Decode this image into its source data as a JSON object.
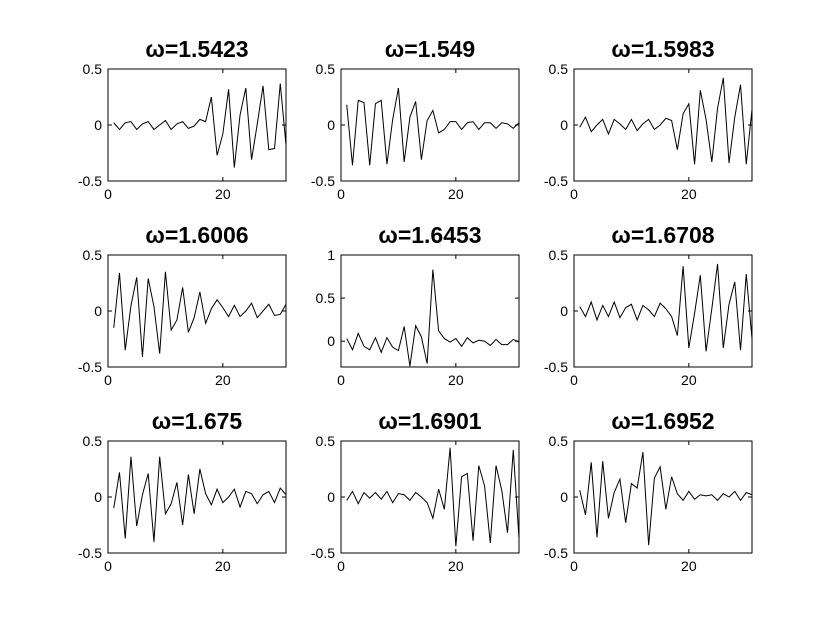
{
  "figure": {
    "background": "#ffffff",
    "line_color": "#000000"
  },
  "chart_data": [
    {
      "type": "line",
      "title": "ω=1.5423",
      "xlim": [
        0,
        31
      ],
      "ylim": [
        -0.5,
        0.5
      ],
      "xticks": [
        0,
        20
      ],
      "xtick_labels": [
        "0",
        "20"
      ],
      "yticks": [
        -0.5,
        0,
        0.5
      ],
      "ytick_labels": [
        "-0.5",
        "0",
        "0.5"
      ],
      "x": [
        1,
        2,
        3,
        4,
        5,
        6,
        7,
        8,
        9,
        10,
        11,
        12,
        13,
        14,
        15,
        16,
        17,
        18,
        19,
        20,
        21,
        22,
        23,
        24,
        25,
        26,
        27,
        28,
        29,
        30,
        31
      ],
      "series": [
        {
          "values": [
            0.02,
            -0.04,
            0.02,
            0.03,
            -0.04,
            0.01,
            0.03,
            -0.04,
            0.0,
            0.04,
            -0.04,
            0.01,
            0.03,
            -0.03,
            -0.01,
            0.05,
            0.03,
            0.25,
            -0.27,
            -0.08,
            0.32,
            -0.38,
            0.09,
            0.33,
            -0.31,
            0.01,
            0.35,
            -0.22,
            -0.21,
            0.37,
            -0.18
          ]
        }
      ]
    },
    {
      "type": "line",
      "title": "ω=1.549",
      "xlim": [
        0,
        31
      ],
      "ylim": [
        -0.5,
        0.5
      ],
      "xticks": [
        0,
        20
      ],
      "xtick_labels": [
        "0",
        "20"
      ],
      "yticks": [
        -0.5,
        0,
        0.5
      ],
      "ytick_labels": [
        "-0.5",
        "0",
        "0.5"
      ],
      "x": [
        1,
        2,
        3,
        4,
        5,
        6,
        7,
        8,
        9,
        10,
        11,
        12,
        13,
        14,
        15,
        16,
        17,
        18,
        19,
        20,
        21,
        22,
        23,
        24,
        25,
        26,
        27,
        28,
        29,
        30,
        31
      ],
      "series": [
        {
          "values": [
            0.18,
            -0.36,
            0.22,
            0.2,
            -0.36,
            0.19,
            0.22,
            -0.35,
            0.05,
            0.33,
            -0.33,
            0.07,
            0.21,
            -0.31,
            0.04,
            0.13,
            -0.07,
            -0.04,
            0.03,
            0.03,
            -0.04,
            0.02,
            0.03,
            -0.04,
            0.02,
            0.02,
            -0.03,
            0.02,
            0.01,
            -0.03,
            0.02
          ]
        }
      ]
    },
    {
      "type": "line",
      "title": "ω=1.5983",
      "xlim": [
        0,
        31
      ],
      "ylim": [
        -0.5,
        0.5
      ],
      "xticks": [
        0,
        20
      ],
      "xtick_labels": [
        "0",
        "20"
      ],
      "yticks": [
        -0.5,
        0,
        0.5
      ],
      "ytick_labels": [
        "-0.5",
        "0",
        "0.5"
      ],
      "x": [
        1,
        2,
        3,
        4,
        5,
        6,
        7,
        8,
        9,
        10,
        11,
        12,
        13,
        14,
        15,
        16,
        17,
        18,
        19,
        20,
        21,
        22,
        23,
        24,
        25,
        26,
        27,
        28,
        29,
        30,
        31
      ],
      "series": [
        {
          "values": [
            -0.02,
            0.07,
            -0.06,
            0.0,
            0.05,
            -0.08,
            0.05,
            0.01,
            -0.04,
            0.05,
            -0.05,
            0.01,
            0.05,
            -0.04,
            0.0,
            0.06,
            0.04,
            -0.22,
            0.1,
            0.19,
            -0.35,
            0.31,
            0.05,
            -0.33,
            0.15,
            0.42,
            -0.34,
            0.07,
            0.36,
            -0.35,
            0.14
          ]
        }
      ]
    },
    {
      "type": "line",
      "title": "ω=1.6006",
      "xlim": [
        0,
        31
      ],
      "ylim": [
        -0.5,
        0.5
      ],
      "xticks": [
        0,
        20
      ],
      "xtick_labels": [
        "0",
        "20"
      ],
      "yticks": [
        -0.5,
        0,
        0.5
      ],
      "ytick_labels": [
        "-0.5",
        "0",
        "0.5"
      ],
      "x": [
        1,
        2,
        3,
        4,
        5,
        6,
        7,
        8,
        9,
        10,
        11,
        12,
        13,
        14,
        15,
        16,
        17,
        18,
        19,
        20,
        21,
        22,
        23,
        24,
        25,
        26,
        27,
        28,
        29,
        30,
        31
      ],
      "series": [
        {
          "values": [
            -0.15,
            0.34,
            -0.35,
            0.05,
            0.3,
            -0.41,
            0.29,
            0.04,
            -0.38,
            0.35,
            -0.17,
            -0.08,
            0.21,
            -0.19,
            -0.06,
            0.17,
            -0.11,
            0.02,
            0.1,
            0.03,
            -0.05,
            0.05,
            -0.05,
            0.0,
            0.07,
            -0.06,
            0.0,
            0.06,
            -0.04,
            -0.03,
            0.06
          ]
        }
      ]
    },
    {
      "type": "line",
      "title": "ω=1.6453",
      "xlim": [
        0,
        31
      ],
      "ylim": [
        -0.3,
        1
      ],
      "xticks": [
        0,
        20
      ],
      "xtick_labels": [
        "0",
        "20"
      ],
      "yticks": [
        0,
        0.5,
        1
      ],
      "ytick_labels": [
        "0",
        "0.5",
        "1"
      ],
      "x": [
        1,
        2,
        3,
        4,
        5,
        6,
        7,
        8,
        9,
        10,
        11,
        12,
        13,
        14,
        15,
        16,
        17,
        18,
        19,
        20,
        21,
        22,
        23,
        24,
        25,
        26,
        27,
        28,
        29,
        30,
        31
      ],
      "series": [
        {
          "values": [
            0.03,
            -0.1,
            0.09,
            -0.06,
            -0.1,
            0.04,
            -0.13,
            0.04,
            -0.07,
            -0.11,
            0.17,
            -0.29,
            0.18,
            0.05,
            -0.26,
            0.83,
            0.12,
            0.03,
            -0.01,
            0.03,
            -0.06,
            0.04,
            -0.02,
            0.01,
            0.0,
            -0.05,
            0.02,
            -0.04,
            -0.04,
            0.02,
            -0.01
          ]
        }
      ]
    },
    {
      "type": "line",
      "title": "ω=1.6708",
      "xlim": [
        0,
        31
      ],
      "ylim": [
        -0.5,
        0.5
      ],
      "xticks": [
        0,
        20
      ],
      "xtick_labels": [
        "0",
        "20"
      ],
      "yticks": [
        -0.5,
        0,
        0.5
      ],
      "ytick_labels": [
        "-0.5",
        "0",
        "0.5"
      ],
      "x": [
        1,
        2,
        3,
        4,
        5,
        6,
        7,
        8,
        9,
        10,
        11,
        12,
        13,
        14,
        15,
        16,
        17,
        18,
        19,
        20,
        21,
        22,
        23,
        24,
        25,
        26,
        27,
        28,
        29,
        30,
        31
      ],
      "series": [
        {
          "values": [
            0.04,
            -0.05,
            0.08,
            -0.08,
            0.05,
            -0.05,
            0.08,
            -0.06,
            0.03,
            0.06,
            -0.08,
            0.05,
            0.01,
            -0.05,
            0.07,
            0.02,
            -0.05,
            -0.22,
            0.4,
            -0.33,
            -0.02,
            0.32,
            -0.36,
            0.02,
            0.42,
            -0.33,
            0.06,
            0.26,
            -0.35,
            0.33,
            -0.25
          ]
        }
      ]
    },
    {
      "type": "line",
      "title": "ω=1.675",
      "xlim": [
        0,
        31
      ],
      "ylim": [
        -0.5,
        0.5
      ],
      "xticks": [
        0,
        20
      ],
      "xtick_labels": [
        "0",
        "20"
      ],
      "yticks": [
        -0.5,
        0,
        0.5
      ],
      "ytick_labels": [
        "-0.5",
        "0",
        "0.5"
      ],
      "x": [
        1,
        2,
        3,
        4,
        5,
        6,
        7,
        8,
        9,
        10,
        11,
        12,
        13,
        14,
        15,
        16,
        17,
        18,
        19,
        20,
        21,
        22,
        23,
        24,
        25,
        26,
        27,
        28,
        29,
        30,
        31
      ],
      "series": [
        {
          "values": [
            -0.1,
            0.22,
            -0.37,
            0.36,
            -0.26,
            0.02,
            0.21,
            -0.4,
            0.36,
            -0.15,
            -0.06,
            0.13,
            -0.25,
            0.2,
            -0.15,
            0.25,
            0.03,
            -0.07,
            0.07,
            -0.05,
            0.0,
            0.07,
            -0.09,
            0.05,
            0.03,
            -0.06,
            0.02,
            0.05,
            -0.05,
            0.08,
            0.02
          ]
        }
      ]
    },
    {
      "type": "line",
      "title": "ω=1.6901",
      "xlim": [
        0,
        31
      ],
      "ylim": [
        -0.5,
        0.5
      ],
      "xticks": [
        0,
        20
      ],
      "xtick_labels": [
        "0",
        "20"
      ],
      "yticks": [
        -0.5,
        0,
        0.5
      ],
      "ytick_labels": [
        "-0.5",
        "0",
        "0.5"
      ],
      "x": [
        1,
        2,
        3,
        4,
        5,
        6,
        7,
        8,
        9,
        10,
        11,
        12,
        13,
        14,
        15,
        16,
        17,
        18,
        19,
        20,
        21,
        22,
        23,
        24,
        25,
        26,
        27,
        28,
        29,
        30,
        31
      ],
      "series": [
        {
          "values": [
            -0.03,
            0.05,
            -0.06,
            0.04,
            -0.01,
            0.04,
            -0.02,
            0.05,
            -0.05,
            0.03,
            0.02,
            -0.03,
            0.04,
            0.0,
            -0.05,
            -0.19,
            0.07,
            -0.11,
            0.44,
            -0.44,
            0.18,
            0.21,
            -0.39,
            0.28,
            0.1,
            -0.41,
            0.28,
            0.06,
            -0.32,
            0.42,
            -0.37
          ]
        }
      ]
    },
    {
      "type": "line",
      "title": "ω=1.6952",
      "xlim": [
        0,
        31
      ],
      "ylim": [
        -0.5,
        0.5
      ],
      "xticks": [
        0,
        20
      ],
      "xtick_labels": [
        "0",
        "20"
      ],
      "yticks": [
        -0.5,
        0,
        0.5
      ],
      "ytick_labels": [
        "-0.5",
        "0",
        "0.5"
      ],
      "x": [
        1,
        2,
        3,
        4,
        5,
        6,
        7,
        8,
        9,
        10,
        11,
        12,
        13,
        14,
        15,
        16,
        17,
        18,
        19,
        20,
        21,
        22,
        23,
        24,
        25,
        26,
        27,
        28,
        29,
        30,
        31
      ],
      "series": [
        {
          "values": [
            0.06,
            -0.16,
            0.31,
            -0.36,
            0.32,
            -0.19,
            0.04,
            0.16,
            -0.23,
            0.12,
            0.08,
            0.4,
            -0.43,
            0.17,
            0.27,
            -0.11,
            0.18,
            0.03,
            -0.03,
            0.05,
            -0.02,
            0.02,
            0.01,
            0.02,
            -0.03,
            0.03,
            0.0,
            0.05,
            -0.03,
            0.04,
            0.02
          ]
        }
      ]
    }
  ]
}
